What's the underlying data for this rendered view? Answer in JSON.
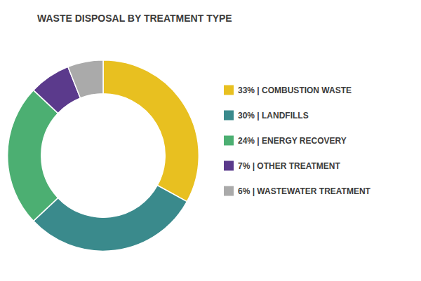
{
  "chart_data": {
    "type": "pie",
    "title": "WASTE DISPOSAL BY TREATMENT TYPE",
    "categories": [
      "33% | COMBUSTION WASTE",
      "30% | LANDFILLS",
      "24% | ENERGY RECOVERY",
      "7% | OTHER TREATMENT",
      "6% | WASTEWATER TREATMENT"
    ],
    "values": [
      33,
      30,
      24,
      7,
      6
    ],
    "colors": [
      "#E8C020",
      "#3A8A8C",
      "#4CAF72",
      "#5B3A8C",
      "#AAAAAA"
    ],
    "legend": "right"
  }
}
